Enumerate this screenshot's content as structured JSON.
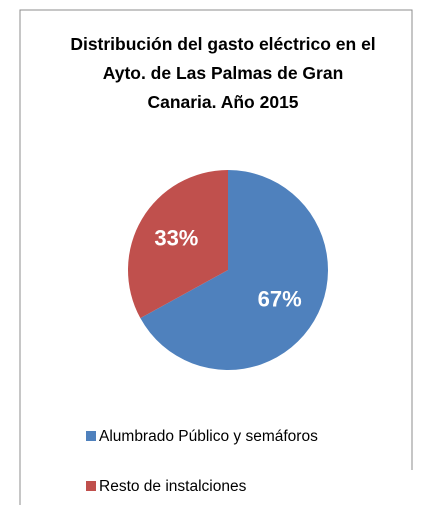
{
  "chart_data": {
    "type": "pie",
    "title": "Distribución del gasto eléctrico en el Ayto. de Las Palmas de Gran Canaria. Año 2015",
    "categories": [
      "Alumbrado Público y semáforos",
      "Resto de instalciones"
    ],
    "values": [
      67,
      33
    ],
    "value_labels": [
      "67%",
      "33%"
    ],
    "colors": [
      "#4f81bd",
      "#c0504d"
    ],
    "legend": "bottom"
  }
}
